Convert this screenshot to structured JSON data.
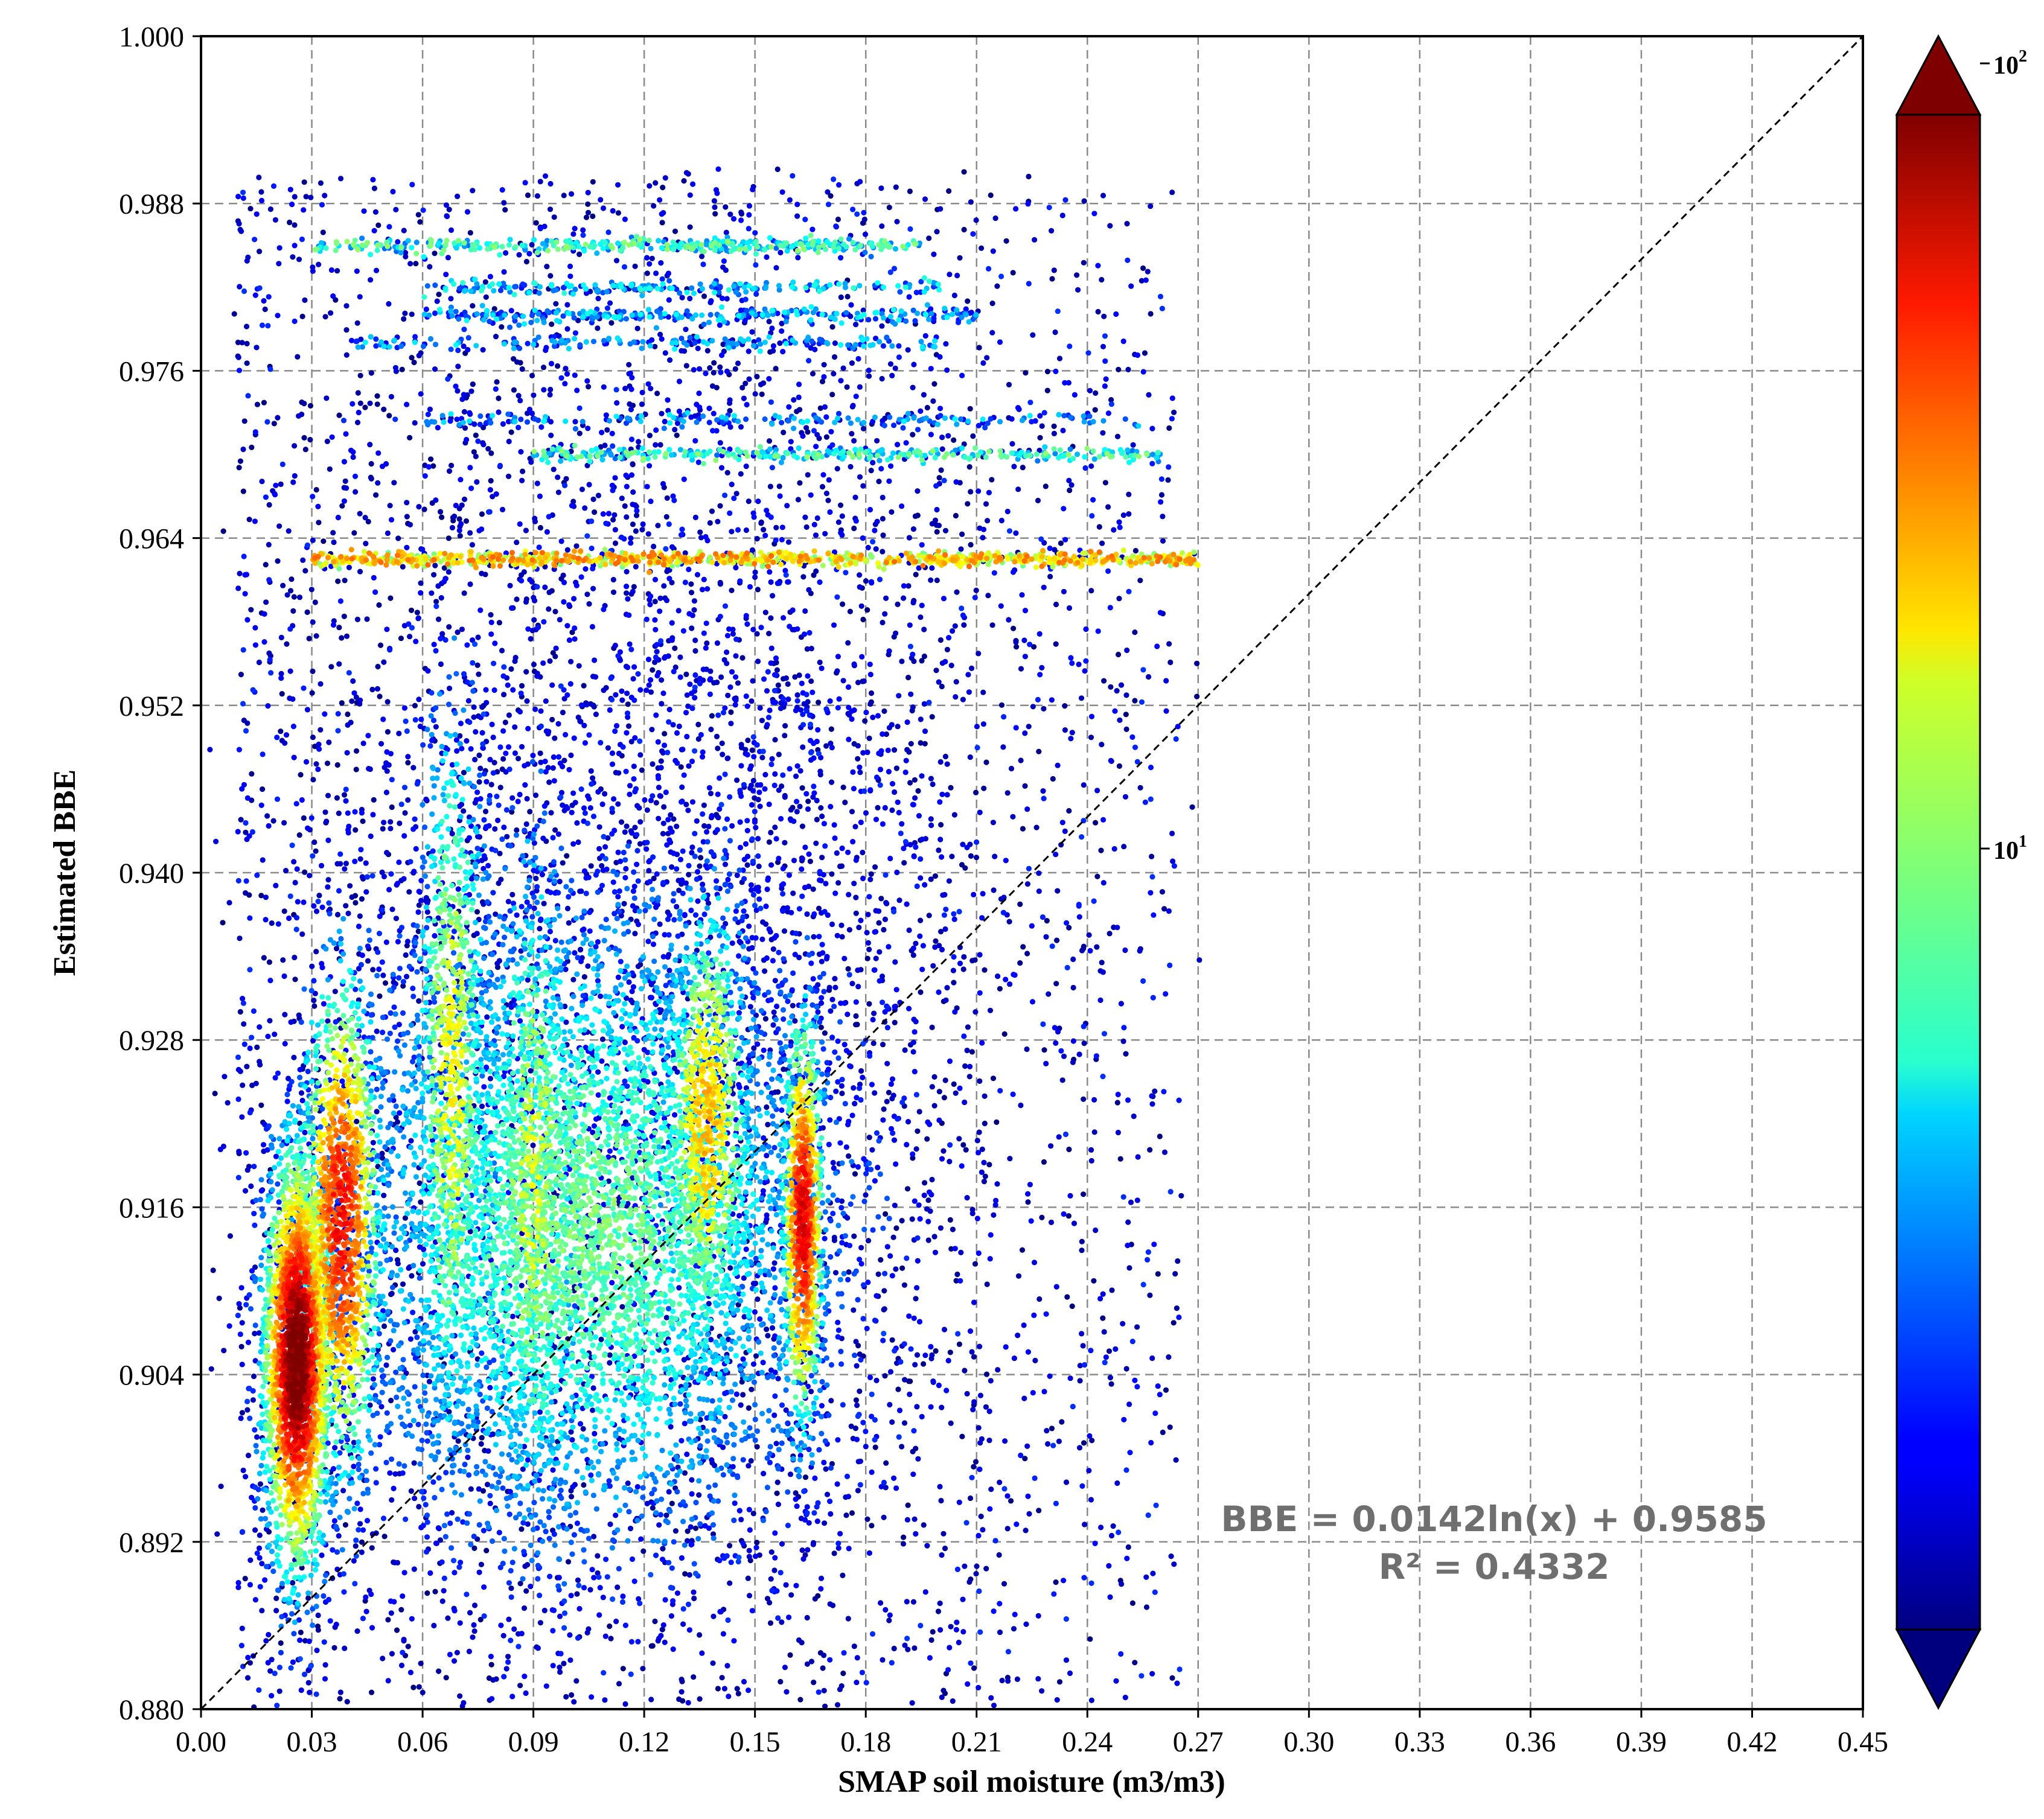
{
  "chart_data": {
    "type": "scatter",
    "title": "",
    "xlabel": "SMAP soil moisture (m3/m3)",
    "ylabel": "Estimated BBE",
    "xlim": [
      0.0,
      0.45
    ],
    "ylim": [
      0.88,
      1.0
    ],
    "xticks": [
      0.0,
      0.03,
      0.06,
      0.09,
      0.12,
      0.15,
      0.18,
      0.21,
      0.24,
      0.27,
      0.3,
      0.33,
      0.36,
      0.39,
      0.42,
      0.45
    ],
    "xtick_labels": [
      "0.00",
      "0.03",
      "0.06",
      "0.09",
      "0.12",
      "0.15",
      "0.18",
      "0.21",
      "0.24",
      "0.27",
      "0.30",
      "0.33",
      "0.36",
      "0.39",
      "0.42",
      "0.45"
    ],
    "yticks": [
      0.88,
      0.892,
      0.904,
      0.916,
      0.928,
      0.94,
      0.952,
      0.964,
      0.976,
      0.988,
      1.0
    ],
    "ytick_labels": [
      "0.880",
      "0.892",
      "0.904",
      "0.916",
      "0.928",
      "0.940",
      "0.952",
      "0.964",
      "0.976",
      "0.988",
      "1.000"
    ],
    "grid": true,
    "reference_line": {
      "name": "1:1 line",
      "x": [
        0.0,
        0.45
      ],
      "y": [
        0.88,
        1.0
      ],
      "style": "dashed",
      "color": "#000000"
    },
    "fit": {
      "equation": "BBE = 0.0142ln(x) + 0.9585",
      "r2": "R² = 0.4332",
      "a": 0.0142,
      "b": 0.9585,
      "r2_value": 0.4332
    },
    "colorbar": {
      "scale": "log",
      "colormap": "jet",
      "min_exponent": 0,
      "max_exponent": 2,
      "labels": [
        {
          "base": "10",
          "exp": "2",
          "value": 100
        },
        {
          "base": "10",
          "exp": "1",
          "value": 10
        }
      ],
      "extend": "both"
    },
    "density_clusters": [
      {
        "x": 0.026,
        "y": 0.905,
        "sx": 0.0045,
        "sy": 0.0075,
        "n": 2400,
        "level": 2.0
      },
      {
        "x": 0.038,
        "y": 0.915,
        "sx": 0.0055,
        "sy": 0.009,
        "n": 1300,
        "level": 1.7
      },
      {
        "x": 0.163,
        "y": 0.915,
        "sx": 0.0028,
        "sy": 0.0075,
        "n": 900,
        "level": 1.75
      },
      {
        "x": 0.137,
        "y": 0.922,
        "sx": 0.006,
        "sy": 0.0085,
        "n": 900,
        "level": 1.35
      },
      {
        "x": 0.068,
        "y": 0.925,
        "sx": 0.005,
        "sy": 0.014,
        "n": 900,
        "level": 1.2
      },
      {
        "x": 0.09,
        "y": 0.918,
        "sx": 0.006,
        "sy": 0.013,
        "n": 700,
        "level": 1.15
      },
      {
        "x": 0.105,
        "y": 0.915,
        "sx": 0.035,
        "sy": 0.012,
        "n": 5200,
        "level": 0.95
      },
      {
        "x": 0.13,
        "y": 0.94,
        "sx": 0.055,
        "sy": 0.03,
        "n": 3600,
        "level": 0.2
      }
    ],
    "horizontal_streaks": [
      {
        "y": 0.9625,
        "x_min": 0.03,
        "x_max": 0.27,
        "n": 900,
        "level": 1.25
      },
      {
        "y": 0.97,
        "x_min": 0.09,
        "x_max": 0.26,
        "n": 320,
        "level": 0.75
      },
      {
        "y": 0.9725,
        "x_min": 0.06,
        "x_max": 0.255,
        "n": 180,
        "level": 0.45
      },
      {
        "y": 0.978,
        "x_min": 0.04,
        "x_max": 0.2,
        "n": 180,
        "level": 0.45
      },
      {
        "y": 0.98,
        "x_min": 0.06,
        "x_max": 0.21,
        "n": 280,
        "level": 0.5
      },
      {
        "y": 0.982,
        "x_min": 0.06,
        "x_max": 0.2,
        "n": 200,
        "level": 0.55
      },
      {
        "y": 0.985,
        "x_min": 0.03,
        "x_max": 0.195,
        "n": 380,
        "level": 0.75
      }
    ]
  }
}
